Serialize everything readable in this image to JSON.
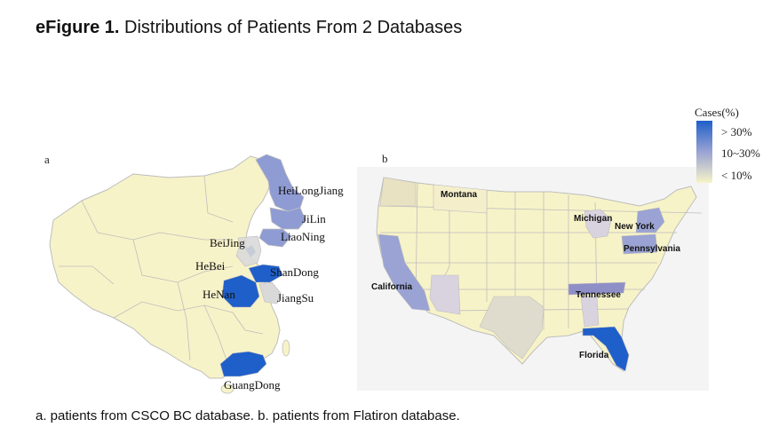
{
  "title": {
    "bold": "eFigure 1.",
    "text": " Distributions of Patients From 2 Databases"
  },
  "panels": {
    "a": "a",
    "b": "b"
  },
  "legend": {
    "title": "Cases(%)",
    "items": [
      "> 30%",
      "10~30%",
      "< 10%"
    ],
    "colors": {
      "high": "#1f5fc9",
      "mid": "#9aa3d3",
      "low": "#f7f3c8"
    }
  },
  "china_labels": {
    "heilongjiang": "HeiLongJiang",
    "jilin": "JiLin",
    "liaoning": "LiaoNing",
    "beijing": "BeiJing",
    "hebei": "HeBei",
    "shandong": "ShanDong",
    "henan": "HeNan",
    "jiangsu": "JiangSu",
    "guangdong": "GuangDong"
  },
  "us_labels": {
    "montana": "Montana",
    "michigan": "Michigan",
    "new_york": "New York",
    "pennsylvania": "Pennsylvania",
    "california": "California",
    "tennessee": "Tennessee",
    "florida": "Florida"
  },
  "caption": "a. patients from CSCO BC database.   b. patients from Flatiron database."
}
